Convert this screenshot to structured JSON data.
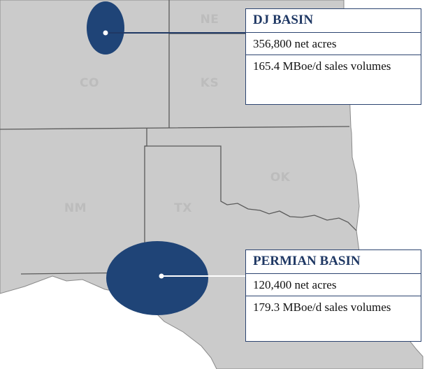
{
  "states": [
    {
      "name": "ne",
      "label": "NE"
    },
    {
      "name": "co",
      "label": "CO"
    },
    {
      "name": "ks",
      "label": "KS"
    },
    {
      "name": "ok",
      "label": "OK"
    },
    {
      "name": "nm",
      "label": "NM"
    },
    {
      "name": "tx",
      "label": "TX"
    }
  ],
  "basins": {
    "dj": {
      "title": "DJ BASIN",
      "net_acres": "356,800 net acres",
      "sales_volumes": "165.4 MBoe/d sales volumes"
    },
    "permian": {
      "title": "PERMIAN BASIN",
      "net_acres": "120,400 net acres",
      "sales_volumes": "179.3 MBoe/d sales volumes"
    }
  },
  "colors": {
    "land": "#cbcbcb",
    "border": "#5a5a5a",
    "basin": "#1f4477",
    "callout_border": "#2c4470",
    "callout_title": "#1f3864",
    "state_label": "#bcbcbc"
  }
}
